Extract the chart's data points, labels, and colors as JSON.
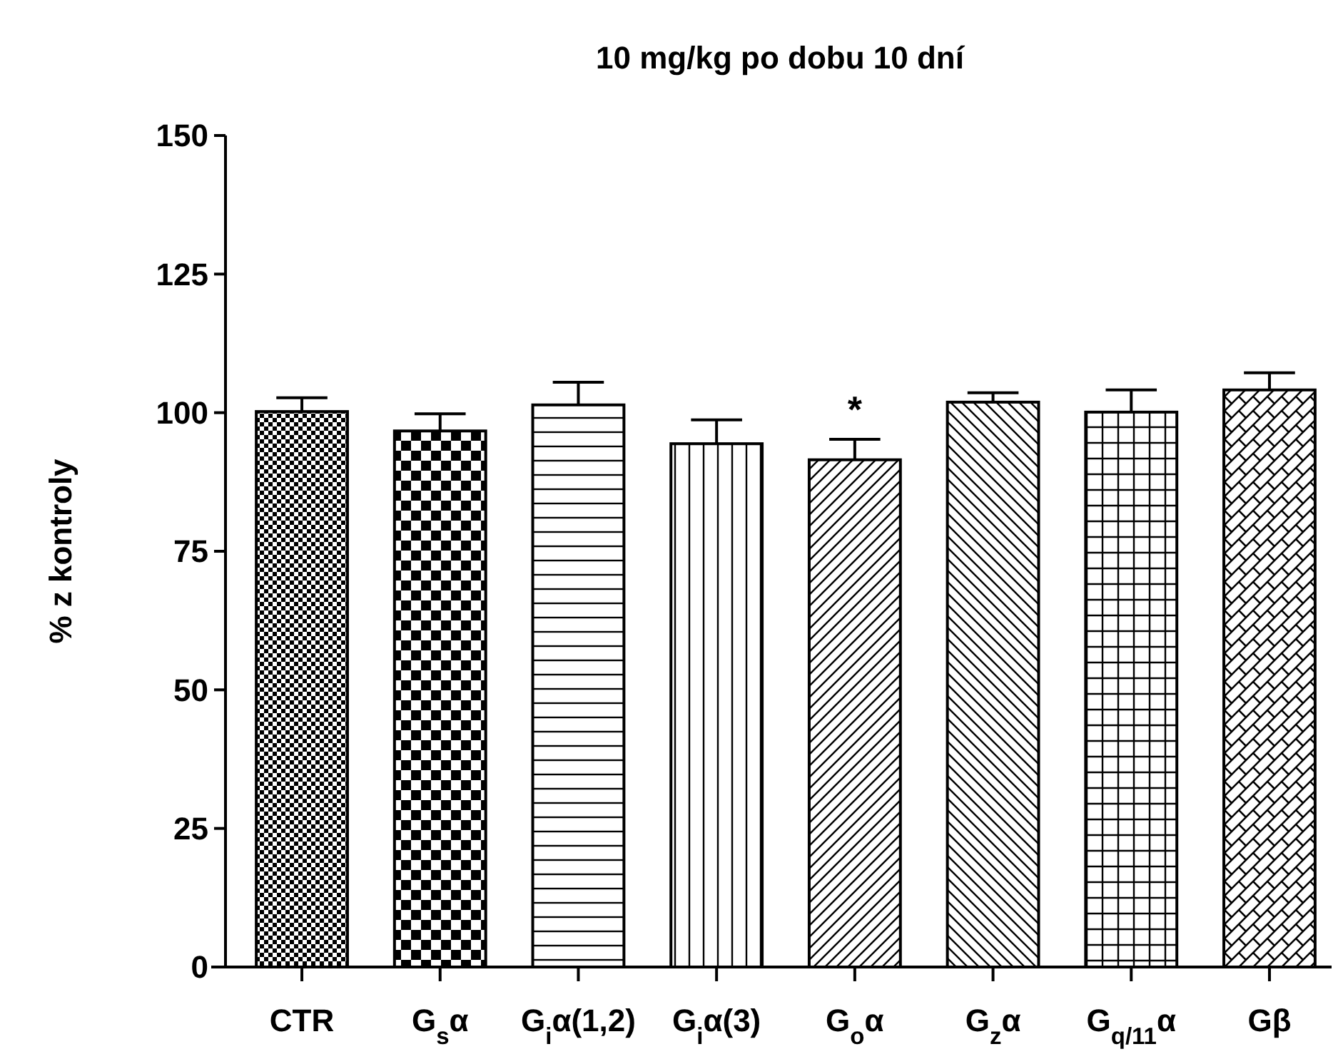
{
  "chart_data": {
    "type": "bar",
    "title": "10 mg/kg po dobu 10 dní",
    "ylabel": "% z kontroly",
    "categories": [
      "CTR",
      "G$_{s}$α",
      "G$_{i}$α(1,2)",
      "G$_{i}$α(3)",
      "G$_{o}$α",
      "G$_{z}$α",
      "G$_{q/11}$α",
      "Gβ"
    ],
    "values": [
      100.2,
      96.7,
      101.4,
      94.4,
      91.5,
      101.9,
      100.1,
      104.1
    ],
    "errors": [
      2.5,
      3.1,
      4.1,
      4.3,
      3.7,
      1.7,
      4.0,
      3.1
    ],
    "color": "#000000",
    "ylim": [
      0,
      150
    ],
    "yticks": [
      0,
      25,
      50,
      75,
      100,
      125,
      150
    ],
    "grid": false,
    "annotations": [
      {
        "text": "*",
        "x": "G$_{o}$α",
        "y": 95.2
      }
    ]
  }
}
